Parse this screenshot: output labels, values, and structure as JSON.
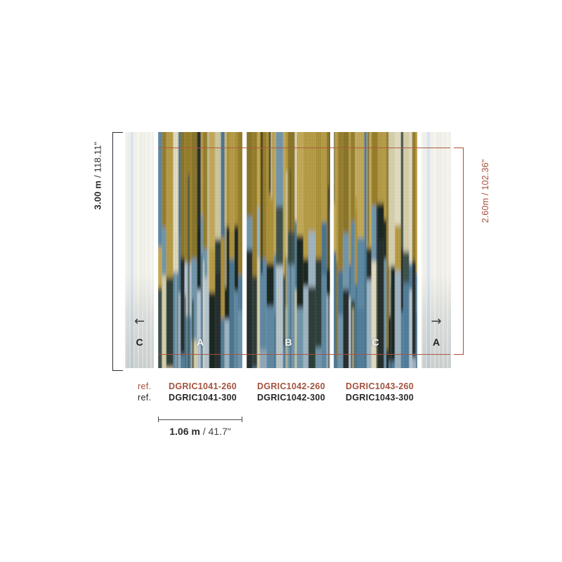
{
  "dimensions": {
    "height": {
      "metric": "3.00 m",
      "imperial": "/ 118.11\""
    },
    "crop_height": {
      "label": "2.60m / 102.36\""
    },
    "panel_width": {
      "metric": "1.06 m",
      "imperial": "/ 41.7\""
    }
  },
  "panels": {
    "edge_left": {
      "letter": "C",
      "arrow": "←"
    },
    "main": [
      {
        "letter": "A"
      },
      {
        "letter": "B"
      },
      {
        "letter": "C"
      }
    ],
    "edge_right": {
      "letter": "A",
      "arrow": "→"
    }
  },
  "refs": {
    "label": "ref.",
    "row_260": [
      "DGRIC1041-260",
      "DGRIC1042-260",
      "DGRIC1043-260"
    ],
    "row_300": [
      "DGRIC1041-300",
      "DGRIC1042-300",
      "DGRIC1043-300"
    ]
  },
  "colors": {
    "accent_red": "#a84f3a",
    "ref_red": "#a3523e",
    "bracket_black": "#2e2e2e",
    "text_dark": "#2b2b2b",
    "mural_palette": {
      "golds": [
        "#ad9136",
        "#b79c42",
        "#977d28",
        "#8a7426",
        "#c3aa55"
      ],
      "creams": [
        "#d8d2ae",
        "#e5dfc2",
        "#cfc9a2"
      ],
      "blues": [
        "#4f7d9b",
        "#5d88a3",
        "#6f97ad",
        "#47748f"
      ],
      "pale_blues": [
        "#9fb6c4",
        "#b7c8d2",
        "#8fa9ba"
      ],
      "darks": [
        "#2c3a34",
        "#202c2a",
        "#3a4f48",
        "#16211f"
      ]
    }
  }
}
